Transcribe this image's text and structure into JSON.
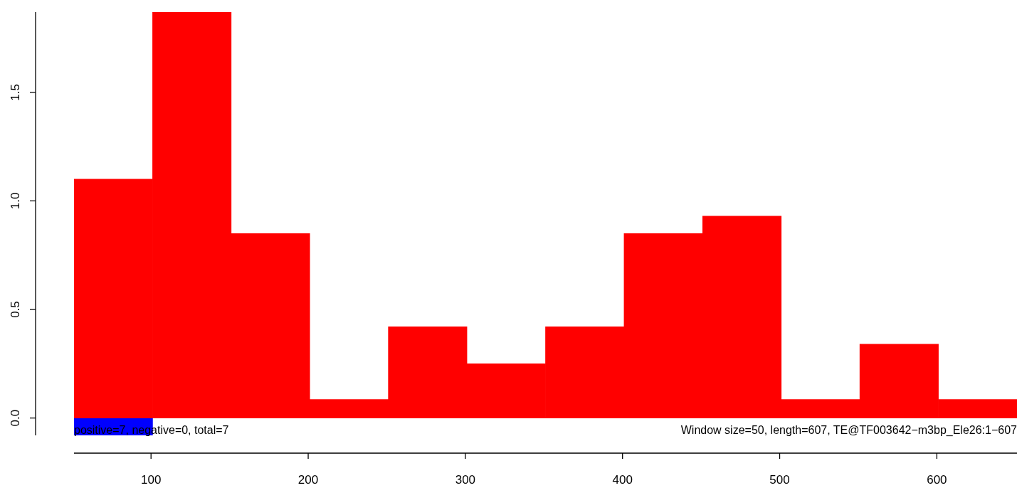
{
  "chart_data": {
    "type": "histogram",
    "bins": [
      51,
      101,
      151,
      201,
      251,
      301,
      351,
      401,
      451,
      501,
      551,
      601,
      651
    ],
    "series": [
      {
        "color": "#ff0000",
        "values": [
          1.1,
          1.87,
          0.85,
          0.085,
          0.42,
          0.25,
          0.42,
          0.85,
          0.93,
          0.085,
          0.34,
          0.085
        ]
      },
      {
        "color": "#0000ff",
        "values": [
          -0.08,
          null,
          null,
          null,
          null,
          null,
          null,
          null,
          null,
          null,
          null,
          null
        ]
      }
    ],
    "xlim": [
      51,
      651
    ],
    "ylim": [
      -0.08,
      1.87
    ],
    "xticks": [
      100,
      200,
      300,
      400,
      500,
      600
    ],
    "yticks": [
      {
        "value": 0,
        "label": "0.0"
      },
      0.5,
      {
        "value": 1,
        "label": "1.0"
      },
      1.5
    ],
    "grid": false,
    "legend": false,
    "annotations": [
      "positive=7, negative=0, total=7",
      "Window size=50, length=607, TE@TF003642−m3bp_Ele26:1−607"
    ]
  }
}
